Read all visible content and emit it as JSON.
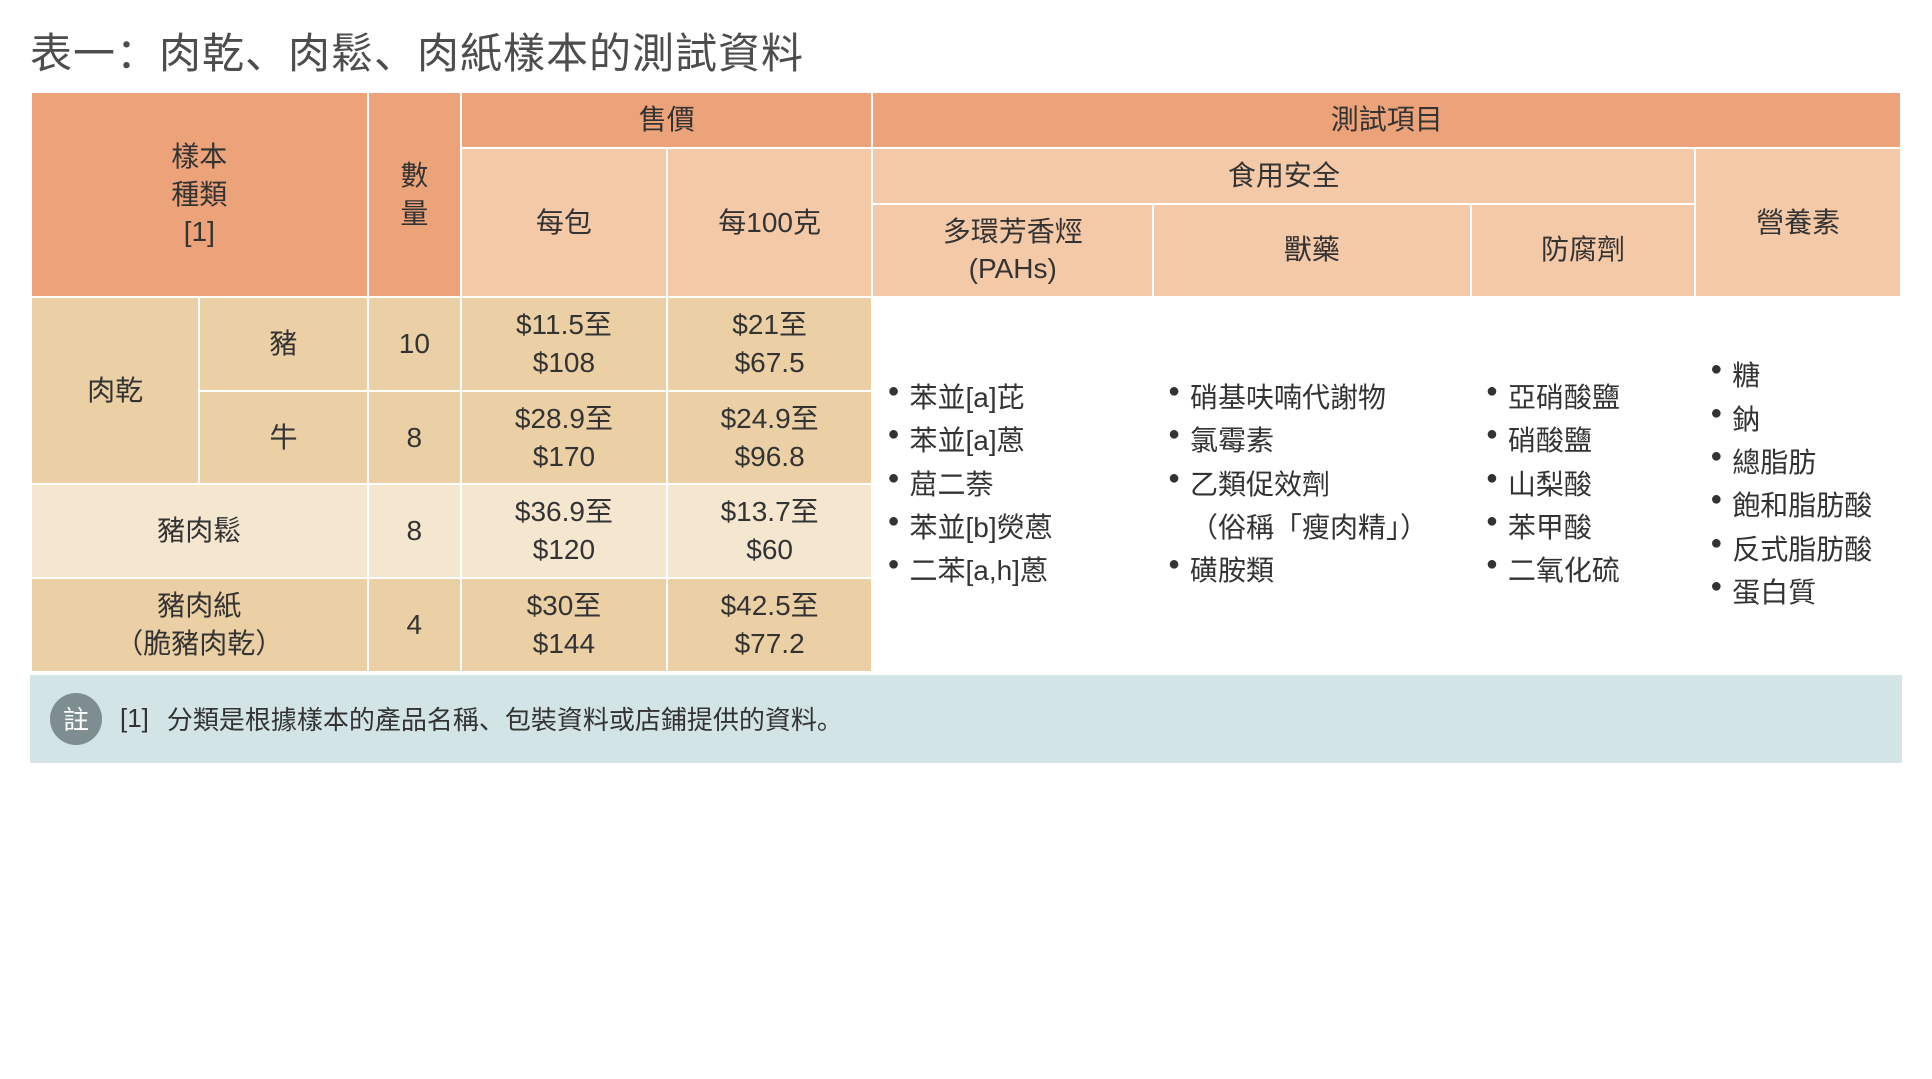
{
  "title": "表一：肉乾、肉鬆、肉紙樣本的測試資料",
  "headers": {
    "sample_type": "樣本\n種類\n[1]",
    "qty": "數\n量",
    "price": "售價",
    "price_per_pack": "每包",
    "price_per_100g": "每100克",
    "test_items": "測試項目",
    "food_safety": "食用安全",
    "pahs": "多環芳香烴\n(PAHs)",
    "vet_drugs": "獸藥",
    "preservatives": "防腐劑",
    "nutrients": "營養素"
  },
  "rows": {
    "jerky_label": "肉乾",
    "pork": "豬",
    "beef": "牛",
    "pork_floss": "豬肉鬆",
    "pork_paper": "豬肉紙\n（脆豬肉乾）",
    "r1": {
      "qty": "10",
      "pack": "$11.5至\n$108",
      "per100": "$21至\n$67.5"
    },
    "r2": {
      "qty": "8",
      "pack": "$28.9至\n$170",
      "per100": "$24.9至\n$96.8"
    },
    "r3": {
      "qty": "8",
      "pack": "$36.9至\n$120",
      "per100": "$13.7至\n$60"
    },
    "r4": {
      "qty": "4",
      "pack": "$30至\n$144",
      "per100": "$42.5至\n$77.2"
    }
  },
  "pahs_list": [
    "苯並[a]芘",
    "苯並[a]蒽",
    "䓛二萘",
    "苯並[b]熒蒽",
    "二苯[a,h]蒽"
  ],
  "vet_list": [
    "硝基呋喃代謝物",
    "氯霉素",
    "乙類促效劑",
    "（俗稱「瘦肉精」）",
    "磺胺類"
  ],
  "preserv_list": [
    "亞硝酸鹽",
    "硝酸鹽",
    "山梨酸",
    "苯甲酸",
    "二氧化硫"
  ],
  "nutrient_list": [
    "糖",
    "鈉",
    "總脂肪",
    "飽和脂肪酸",
    "反式脂肪酸",
    "蛋白質"
  ],
  "footnote": {
    "badge": "註",
    "ref": "[1]",
    "text": "分類是根據樣本的產品名稱、包裝資料或店鋪提供的資料。"
  },
  "colors": {
    "header_orange": "#eca379",
    "header_orange_light": "#f4c9a8",
    "tan_dark": "#ecd0a5",
    "tan_light": "#f5e7cf",
    "footnote_bg": "#d2e4e6",
    "badge_bg": "#7d8d90",
    "title_color": "#4d4d4d"
  },
  "col_widths_pct": [
    9,
    9,
    5,
    11,
    11,
    15,
    17,
    12,
    11
  ]
}
